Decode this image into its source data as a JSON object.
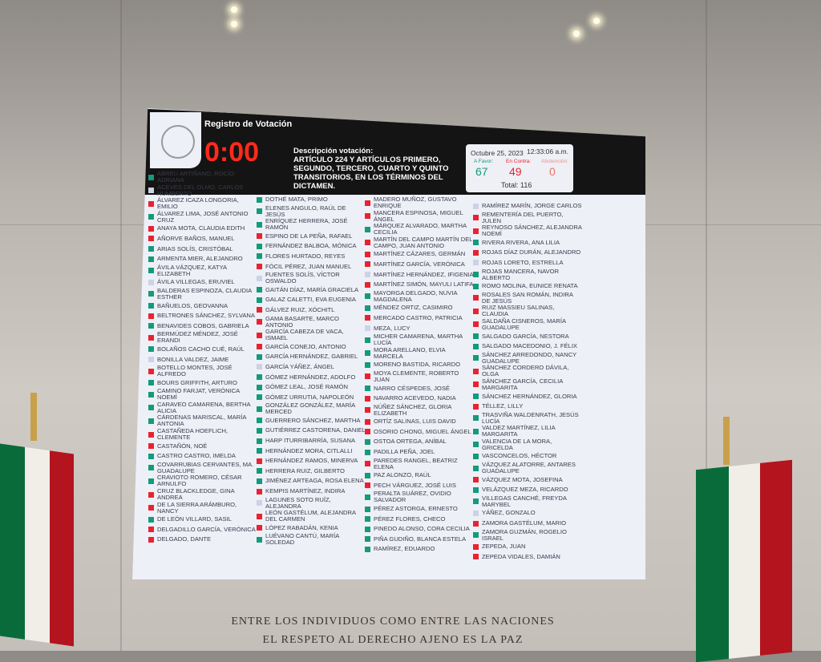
{
  "screen": {
    "title": "Registro de Votación",
    "timer": "0:00",
    "description_label": "Descripción votación:",
    "description": "ARTÍCULO 224 Y ARTÍCULOS PRIMERO, SEGUNDO, TERCERO, CUARTO Y QUINTO TRANSITORIOS, EN LOS TÉRMINOS DEL DICTAMEN.",
    "date": "Octubre 25, 2023",
    "time": "12:33:06 a.m.",
    "favor_label": "A Favor:",
    "contra_label": "En Contra:",
    "abstencion_label": "Abstención:",
    "favor": "67",
    "contra": "49",
    "abstencion": "0",
    "total": "Total: 116",
    "colors": {
      "favor": "#139b7b",
      "contra": "#e8232f",
      "none": "#cdd2e4"
    },
    "columns": [
      [
        {
          "name": "ABREU ARTIÑANO, ROCÍO ADRIANA",
          "vote": "F"
        },
        {
          "name": "ACEVES DEL OLMO, CARLOS HUMBERTO",
          "vote": "N"
        },
        {
          "name": "ÁLVAREZ ICAZA LONGORIA, EMILIO",
          "vote": "C"
        },
        {
          "name": "ÁLVAREZ LIMA, JOSÉ ANTONIO CRUZ",
          "vote": "F"
        },
        {
          "name": "ANAYA MOTA, CLAUDIA EDITH",
          "vote": "C"
        },
        {
          "name": "AÑORVE BAÑOS, MANUEL",
          "vote": "C"
        },
        {
          "name": "ARIAS SOLÍS, CRISTÓBAL",
          "vote": "F"
        },
        {
          "name": "ARMENTA MIER, ALEJANDRO",
          "vote": "F"
        },
        {
          "name": "ÁVILA VÁZQUEZ, KATYA ELIZABETH",
          "vote": "F"
        },
        {
          "name": "ÁVILA VILLEGAS, ERUVIEL",
          "vote": "N"
        },
        {
          "name": "BALDERAS ESPINOZA, CLAUDIA ESTHER",
          "vote": "F"
        },
        {
          "name": "BAÑUELOS, GEOVANNA",
          "vote": "F"
        },
        {
          "name": "BELTRONES SÁNCHEZ, SYLVANA",
          "vote": "C"
        },
        {
          "name": "BENAVIDES COBOS, GABRIELA",
          "vote": "F"
        },
        {
          "name": "BERMÚDEZ MÉNDEZ, JOSÉ ERANDI",
          "vote": "C"
        },
        {
          "name": "BOLAÑOS CACHO CUÉ, RAÚL",
          "vote": "F"
        },
        {
          "name": "BONILLA VALDEZ, JAIME",
          "vote": "N"
        },
        {
          "name": "BOTELLO MONTES, JOSÉ ALFREDO",
          "vote": "C"
        },
        {
          "name": "BOURS GRIFFITH, ARTURO",
          "vote": "F"
        },
        {
          "name": "CAMINO FARJAT, VERÓNICA NOEMÍ",
          "vote": "F"
        },
        {
          "name": "CARAVEO CAMARENA, BERTHA ALICIA",
          "vote": "F"
        },
        {
          "name": "CÁRDENAS MARISCAL, MARÍA ANTONIA",
          "vote": "F"
        },
        {
          "name": "CASTAÑEDA HOEFLICH, CLEMENTE",
          "vote": "C"
        },
        {
          "name": "CASTAÑÓN, NOÉ",
          "vote": "C"
        },
        {
          "name": "CASTRO CASTRO, IMELDA",
          "vote": "F"
        },
        {
          "name": "COVARRUBIAS CERVANTES, MA. GUADALUPE",
          "vote": "F"
        },
        {
          "name": "CRAVIOTO ROMERO, CÉSAR ARNULFO",
          "vote": "F"
        },
        {
          "name": "CRUZ BLACKLEDGE, GINA ANDREA",
          "vote": "C"
        },
        {
          "name": "DE LA SIERRA ARÁMBURO, NANCY",
          "vote": "C"
        },
        {
          "name": "DE LEÓN VILLARD, SASIL",
          "vote": "F"
        },
        {
          "name": "DELGADILLO GARCÍA, VERÓNICA",
          "vote": "C"
        },
        {
          "name": "DELGADO, DANTE",
          "vote": "C"
        }
      ],
      [
        {
          "name": "DOTHÉ MATA, PRIMO",
          "vote": "F"
        },
        {
          "name": "ELENES ANGULO, RAÚL DE JESÚS",
          "vote": "F"
        },
        {
          "name": "ENRÍQUEZ HERRERA, JOSÉ RAMÓN",
          "vote": "F"
        },
        {
          "name": "ESPINO DE LA PEÑA, RAFAEL",
          "vote": "C"
        },
        {
          "name": "FERNÁNDEZ BALBOA, MÓNICA",
          "vote": "F"
        },
        {
          "name": "FLORES HURTADO, REYES",
          "vote": "F"
        },
        {
          "name": "FÓCIL PÉREZ, JUAN MANUEL",
          "vote": "C"
        },
        {
          "name": "FUENTES SOLÍS, VÍCTOR OSWALDO",
          "vote": "N"
        },
        {
          "name": "GAITÁN DÍAZ, MARÍA GRACIELA",
          "vote": "F"
        },
        {
          "name": "GALAZ CALETTI, EVA EUGENIA",
          "vote": "F"
        },
        {
          "name": "GÁLVEZ RUIZ, XÓCHITL",
          "vote": "C"
        },
        {
          "name": "GAMA BASARTE, MARCO ANTONIO",
          "vote": "C"
        },
        {
          "name": "GARCÍA CABEZA DE VACA, ISMAEL",
          "vote": "C"
        },
        {
          "name": "GARCÍA CONEJO, ANTONIO",
          "vote": "C"
        },
        {
          "name": "GARCÍA HERNÁNDEZ, GABRIEL",
          "vote": "F"
        },
        {
          "name": "GARCÍA YÁÑEZ, ÁNGEL",
          "vote": "N"
        },
        {
          "name": "GÓMEZ HERNÁNDEZ, ADOLFO",
          "vote": "F"
        },
        {
          "name": "GÓMEZ LEAL, JOSÉ RAMÓN",
          "vote": "F"
        },
        {
          "name": "GÓMEZ URRUTIA, NAPOLEÓN",
          "vote": "F"
        },
        {
          "name": "GONZÁLEZ GONZÁLEZ, MARÍA MERCED",
          "vote": "F"
        },
        {
          "name": "GUERRERO SÁNCHEZ, MARTHA",
          "vote": "F"
        },
        {
          "name": "GUTIÉRREZ CASTORENA, DANIEL",
          "vote": "F"
        },
        {
          "name": "HARP ITURRIBARRÍA, SUSANA",
          "vote": "F"
        },
        {
          "name": "HERNÁNDEZ MORA, CITLALLI",
          "vote": "F"
        },
        {
          "name": "HERNÁNDEZ RAMOS, MINERVA",
          "vote": "C"
        },
        {
          "name": "HERRERA RUIZ, GILBERTO",
          "vote": "F"
        },
        {
          "name": "JIMÉNEZ ARTEAGA, ROSA ELENA",
          "vote": "F"
        },
        {
          "name": "KEMPIS MARTÍNEZ, INDIRA",
          "vote": "C"
        },
        {
          "name": "LAGUNES SOTO RUÍZ, ALEJANDRA",
          "vote": "N"
        },
        {
          "name": "LEÓN GASTÉLUM, ALEJANDRA DEL CARMEN",
          "vote": "C"
        },
        {
          "name": "LÓPEZ RABADÁN, KENIA",
          "vote": "C"
        },
        {
          "name": "LUÉVANO CANTÚ, MARÍA SOLEDAD",
          "vote": "F"
        }
      ],
      [
        {
          "name": "MADERO MUÑOZ, GUSTAVO ENRIQUE",
          "vote": "C"
        },
        {
          "name": "MANCERA ESPINOSA, MIGUEL ÁNGEL",
          "vote": "C"
        },
        {
          "name": "MÁRQUEZ ALVARADO, MARTHA CECILIA",
          "vote": "F"
        },
        {
          "name": "MARTÍN DEL CAMPO MARTÍN DEL CAMPO, JUAN ANTONIO",
          "vote": "C"
        },
        {
          "name": "MARTÍNEZ CÁZARES, GERMÁN",
          "vote": "C"
        },
        {
          "name": "MARTÍNEZ GARCÍA, VERÓNICA",
          "vote": "C"
        },
        {
          "name": "MARTÍNEZ HERNÁNDEZ, IFIGENIA",
          "vote": "N"
        },
        {
          "name": "MARTÍNEZ SIMÓN, MAYULI LATIFA",
          "vote": "C"
        },
        {
          "name": "MAYORGA DELGADO, NUVIA MAGDALENA",
          "vote": "F"
        },
        {
          "name": "MÉNDEZ ORTIZ, CASIMIRO",
          "vote": "F"
        },
        {
          "name": "MERCADO CASTRO, PATRICIA",
          "vote": "C"
        },
        {
          "name": "MEZA, LUCY",
          "vote": "N"
        },
        {
          "name": "MICHER CAMARENA, MARTHA LUCÍA",
          "vote": "F"
        },
        {
          "name": "MORA ARELLANO, ELVIA MARCELA",
          "vote": "F"
        },
        {
          "name": "MORENO BASTIDA, RICARDO",
          "vote": "F"
        },
        {
          "name": "MOYA CLEMENTE, ROBERTO JUAN",
          "vote": "C"
        },
        {
          "name": "NARRO CÉSPEDES, JOSÉ",
          "vote": "F"
        },
        {
          "name": "NAVARRO ACEVEDO, NADIA",
          "vote": "C"
        },
        {
          "name": "NÚÑEZ SÁNCHEZ, GLORIA ELIZABETH",
          "vote": "C"
        },
        {
          "name": "ORTÍZ SALINAS, LUIS DAVID",
          "vote": "C"
        },
        {
          "name": "OSORIO CHONG, MIGUEL ÁNGEL",
          "vote": "C"
        },
        {
          "name": "OSTOA ORTEGA, ANÍBAL",
          "vote": "F"
        },
        {
          "name": "PADILLA PEÑA, JOEL",
          "vote": "F"
        },
        {
          "name": "PAREDES RANGEL, BEATRIZ ELENA",
          "vote": "C"
        },
        {
          "name": "PAZ ALONZO, RAÚL",
          "vote": "F"
        },
        {
          "name": "PECH VÁRGUEZ, JOSÉ LUIS",
          "vote": "C"
        },
        {
          "name": "PERALTA SUÁREZ, OVIDIO SALVADOR",
          "vote": "F"
        },
        {
          "name": "PÉREZ ASTORGA, ERNESTO",
          "vote": "F"
        },
        {
          "name": "PÉREZ FLORES, CHECO",
          "vote": "F"
        },
        {
          "name": "PINEDO ALONSO, CORA CECILIA",
          "vote": "F"
        },
        {
          "name": "PIÑA GUDIÑO, BLANCA ESTELA",
          "vote": "F"
        },
        {
          "name": "RAMÍREZ, EDUARDO",
          "vote": "F"
        }
      ],
      [
        {
          "name": "RAMÍREZ MARÍN, JORGE CARLOS",
          "vote": "N"
        },
        {
          "name": "REMENTERÍA DEL PUERTO, JULEN",
          "vote": "C"
        },
        {
          "name": "REYNOSO SÁNCHEZ, ALEJANDRA NOEMÍ",
          "vote": "C"
        },
        {
          "name": "RIVERA RIVERA, ANA LILIA",
          "vote": "F"
        },
        {
          "name": "ROJAS DÍAZ DURÁN, ALEJANDRO",
          "vote": "C"
        },
        {
          "name": "ROJAS LORETO, ESTRELLA",
          "vote": "N"
        },
        {
          "name": "ROJAS MANCERA, NAVOR ALBERTO",
          "vote": "F"
        },
        {
          "name": "ROMO MOLINA, EUNICE RENATA",
          "vote": "F"
        },
        {
          "name": "ROSALES SAN ROMÁN, INDIRA DE JESÚS",
          "vote": "C"
        },
        {
          "name": "RUIZ MASSIEU SALINAS, CLAUDIA",
          "vote": "C"
        },
        {
          "name": "SALDAÑA CISNEROS, MARÍA GUADALUPE",
          "vote": "C"
        },
        {
          "name": "SALGADO GARCÍA, NESTORA",
          "vote": "F"
        },
        {
          "name": "SALGADO MACEDONIO, J. FÉLIX",
          "vote": "F"
        },
        {
          "name": "SÁNCHEZ ARREDONDO, NANCY GUADALUPE",
          "vote": "F"
        },
        {
          "name": "SÁNCHEZ CORDERO DÁVILA, OLGA",
          "vote": "C"
        },
        {
          "name": "SÁNCHEZ GARCÍA, CECILIA MARGARITA",
          "vote": "C"
        },
        {
          "name": "SÁNCHEZ HERNÁNDEZ, GLORIA",
          "vote": "F"
        },
        {
          "name": "TÉLLEZ, LILLY",
          "vote": "C"
        },
        {
          "name": "TRASVIÑA WALDENRATH, JESÚS LUCÍA",
          "vote": "F"
        },
        {
          "name": "VALDEZ MARTÍNEZ, LILIA MARGARITA",
          "vote": "F"
        },
        {
          "name": "VALENCIA DE LA MORA, GRICELDA",
          "vote": "F"
        },
        {
          "name": "VASCONCELOS, HÉCTOR",
          "vote": "F"
        },
        {
          "name": "VÁZQUEZ ALATORRE, ANTARES GUADALUPE",
          "vote": "F"
        },
        {
          "name": "VÁZQUEZ MOTA, JOSEFINA",
          "vote": "C"
        },
        {
          "name": "VELÁZQUEZ MEZA, RICARDO",
          "vote": "F"
        },
        {
          "name": "VILLEGAS CANCHÉ, FREYDA MARYBEL",
          "vote": "F"
        },
        {
          "name": "YÁÑEZ, GONZALO",
          "vote": "N"
        },
        {
          "name": "ZAMORA GASTÉLUM, MARIO",
          "vote": "C"
        },
        {
          "name": "ZAMORA GUZMÁN, ROGELIO ISRAEL",
          "vote": "F"
        },
        {
          "name": "ZEPEDA, JUAN",
          "vote": "C"
        },
        {
          "name": "ZEPEDA VIDALES, DAMIÁN",
          "vote": "C"
        }
      ]
    ]
  },
  "inscription": {
    "line1": "ENTRE LOS INDIVIDUOS COMO ENTRE LAS NACIONES",
    "line2": "EL RESPETO AL DERECHO AJENO ES LA PAZ"
  }
}
